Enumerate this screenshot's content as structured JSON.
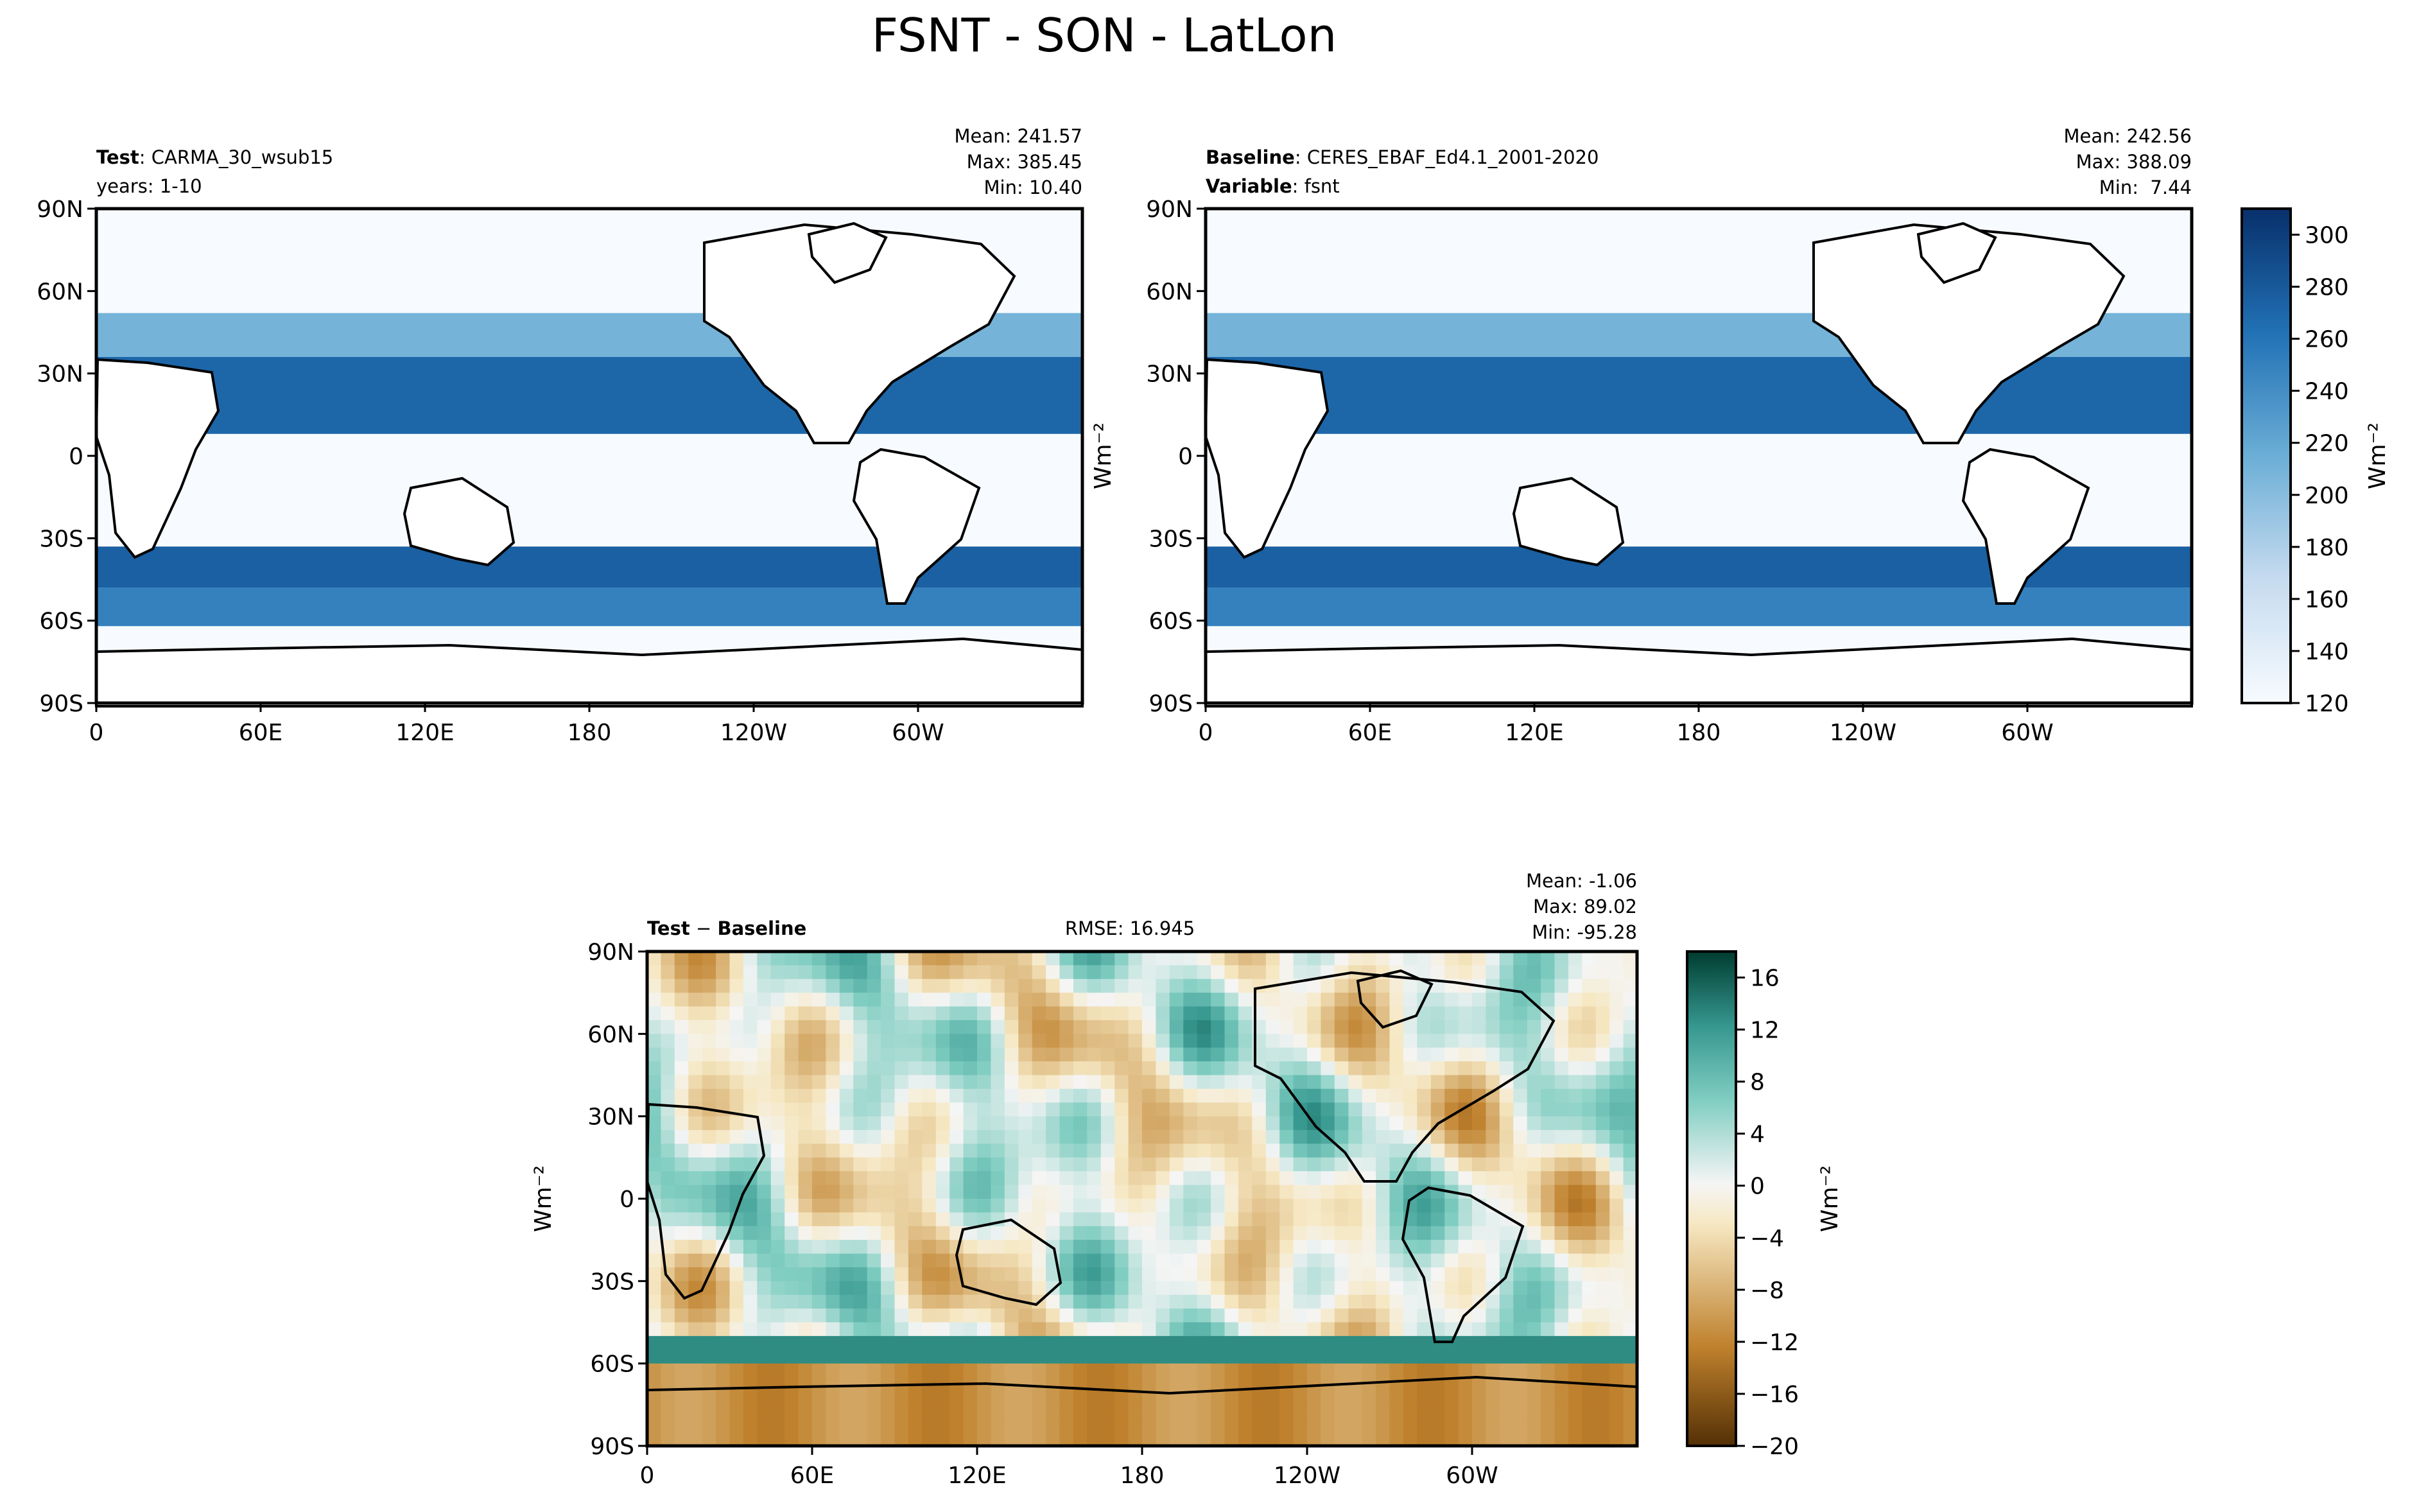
{
  "title": "FSNT - SON - LatLon",
  "chart_data": [
    {
      "type": "heatmap",
      "panel": "test",
      "left_label_bold": "Test",
      "left_label_value": "CARMA_30_wsub15",
      "left_label_line2": "years: 1-10",
      "stats": [
        "Mean: 241.57",
        "Max: 385.45",
        "Min: 10.40"
      ],
      "mean": 241.57,
      "max": 385.45,
      "min": 10.4,
      "xticks": [
        "0",
        "60E",
        "120E",
        "180",
        "120W",
        "60W"
      ],
      "yticks": [
        "90N",
        "60N",
        "30N",
        "0",
        "30S",
        "60S",
        "90S"
      ],
      "ylabel": "",
      "colormap": "Blues",
      "zones": [
        {
          "lat": [
            -90,
            -62
          ],
          "value": 120
        },
        {
          "lat": [
            -62,
            -48
          ],
          "value": 250
        },
        {
          "lat": [
            -48,
            -33
          ],
          "value": 275
        },
        {
          "lat": [
            -33,
            8
          ],
          "value": 120
        },
        {
          "lat": [
            8,
            36
          ],
          "value": 270
        },
        {
          "lat": [
            36,
            52
          ],
          "value": 210
        },
        {
          "lat": [
            52,
            90
          ],
          "value": 120
        }
      ]
    },
    {
      "type": "heatmap",
      "panel": "baseline",
      "left_label_bold": "Baseline",
      "left_label_value": "CERES_EBAF_Ed4.1_2001-2020",
      "left_label_bold2": "Variable",
      "left_label_value2": "fsnt",
      "stats": [
        "Mean: 242.56",
        "Max: 388.09",
        "Min:  7.44"
      ],
      "mean": 242.56,
      "max": 388.09,
      "min": 7.44,
      "xticks": [
        "0",
        "60E",
        "120E",
        "180",
        "120W",
        "60W"
      ],
      "yticks": [
        "90N",
        "60N",
        "30N",
        "0",
        "30S",
        "60S",
        "90S"
      ],
      "ylabel": "Wm⁻²",
      "colormap": "Blues",
      "zones": [
        {
          "lat": [
            -90,
            -62
          ],
          "value": 120
        },
        {
          "lat": [
            -62,
            -48
          ],
          "value": 250
        },
        {
          "lat": [
            -48,
            -33
          ],
          "value": 275
        },
        {
          "lat": [
            -33,
            8
          ],
          "value": 120
        },
        {
          "lat": [
            8,
            36
          ],
          "value": 270
        },
        {
          "lat": [
            36,
            52
          ],
          "value": 210
        },
        {
          "lat": [
            52,
            90
          ],
          "value": 120
        }
      ],
      "colorbar": {
        "ticks": [
          "120",
          "140",
          "160",
          "180",
          "200",
          "220",
          "240",
          "260",
          "280",
          "300"
        ],
        "range": [
          120,
          310
        ],
        "label": "Wm⁻²"
      }
    },
    {
      "type": "heatmap",
      "panel": "difference",
      "left_label_bold": "Test",
      "left_label_minus": " − ",
      "left_label_bold2": "Baseline",
      "center_label": "RMSE: 16.945",
      "rmse": 16.945,
      "stats": [
        "Mean: -1.06",
        "Max: 89.02",
        "Min: -95.28"
      ],
      "mean": -1.06,
      "max": 89.02,
      "min": -95.28,
      "xticks": [
        "0",
        "60E",
        "120E",
        "180",
        "120W",
        "60W"
      ],
      "yticks": [
        "90N",
        "60N",
        "30N",
        "0",
        "30S",
        "60S",
        "90S"
      ],
      "ylabel": "Wm⁻²",
      "colormap": "BrBG",
      "colorbar": {
        "ticks": [
          "16",
          "12",
          "8",
          "4",
          "0",
          "−4",
          "−8",
          "−12",
          "−16",
          "−20"
        ],
        "range": [
          -20,
          18
        ],
        "label": "Wm⁻²"
      }
    }
  ]
}
